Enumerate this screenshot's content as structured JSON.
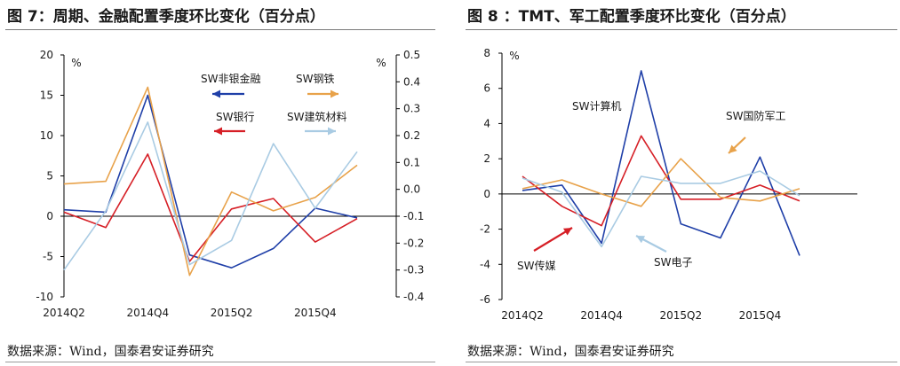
{
  "figure_left": {
    "title": "图 7：周期、金融配置季度环比变化（百分点）",
    "source": "数据来源：Wind，国泰君安证券研究"
  },
  "figure_right": {
    "title": "图 8 ：TMT、军工配置季度环比变化（百分点）",
    "source": "数据来源：Wind，国泰君安证券研究"
  },
  "chart_data": [
    {
      "type": "line",
      "title": "图 7：周期、金融配置季度环比变化（百分点）",
      "x": [
        "2014Q2",
        "2014Q3",
        "2014Q4",
        "2015Q1",
        "2015Q2",
        "2015Q3",
        "2015Q4",
        "2016Q1"
      ],
      "x_tick_labels": [
        "2014Q2",
        "2014Q4",
        "2015Q2",
        "2015Q4"
      ],
      "ylabel_left": "%",
      "ylabel_right": "%",
      "ylim_left": [
        -10,
        20
      ],
      "yticks_left": [
        -10,
        -5,
        0,
        5,
        10,
        15,
        20
      ],
      "ylim_right": [
        -0.4,
        0.5
      ],
      "yticks_right": [
        "-0.4",
        "-0.3",
        "-0.2",
        "-0.1",
        "0.0",
        "0.1",
        "0.2",
        "0.3",
        "0.4",
        "0.5"
      ],
      "series": [
        {
          "name": "SW非银金融",
          "color": "#1f3fa8",
          "axis": "left",
          "values": [
            0.8,
            0.5,
            15.0,
            -4.8,
            -6.4,
            -4.0,
            1.0,
            -0.2
          ]
        },
        {
          "name": "SW银行",
          "color": "#d61f26",
          "axis": "left",
          "values": [
            0.5,
            -1.4,
            7.7,
            -5.6,
            0.9,
            2.2,
            -3.2,
            -0.3
          ]
        },
        {
          "name": "SW钢铁",
          "color": "#e8a24a",
          "axis": "right",
          "values": [
            0.02,
            0.03,
            0.38,
            -0.32,
            -0.01,
            -0.08,
            -0.03,
            0.09
          ]
        },
        {
          "name": "SW建筑材料",
          "color": "#a9cbe3",
          "axis": "right",
          "values": [
            -0.3,
            -0.08,
            0.25,
            -0.28,
            -0.19,
            0.17,
            -0.07,
            0.14
          ]
        }
      ]
    },
    {
      "type": "line",
      "title": "图 8 ：TMT、军工配置季度环比变化（百分点）",
      "x": [
        "2014Q2",
        "2014Q3",
        "2014Q4",
        "2015Q1",
        "2015Q2",
        "2015Q3",
        "2015Q4",
        "2016Q1"
      ],
      "x_tick_labels": [
        "2014Q2",
        "2014Q4",
        "2015Q2",
        "2015Q4"
      ],
      "ylabel": "%",
      "ylim": [
        -6,
        8
      ],
      "yticks": [
        -6,
        -4,
        -2,
        0,
        2,
        4,
        6,
        8
      ],
      "series": [
        {
          "name": "SW计算机",
          "color": "#1f3fa8",
          "values": [
            0.2,
            0.5,
            -2.8,
            7.0,
            -1.7,
            -2.5,
            2.1,
            -3.5
          ]
        },
        {
          "name": "SW传媒",
          "color": "#d61f26",
          "values": [
            1.0,
            -0.7,
            -1.8,
            3.3,
            -0.3,
            -0.3,
            0.5,
            -0.4
          ]
        },
        {
          "name": "SW国防军工",
          "color": "#e8a24a",
          "values": [
            0.3,
            0.8,
            0.0,
            -0.7,
            2.0,
            -0.2,
            -0.4,
            0.3
          ]
        },
        {
          "name": "SW电子",
          "color": "#a9cbe3",
          "values": [
            0.9,
            0.1,
            -3.0,
            1.0,
            0.6,
            0.6,
            1.3,
            -0.1
          ]
        }
      ]
    }
  ]
}
